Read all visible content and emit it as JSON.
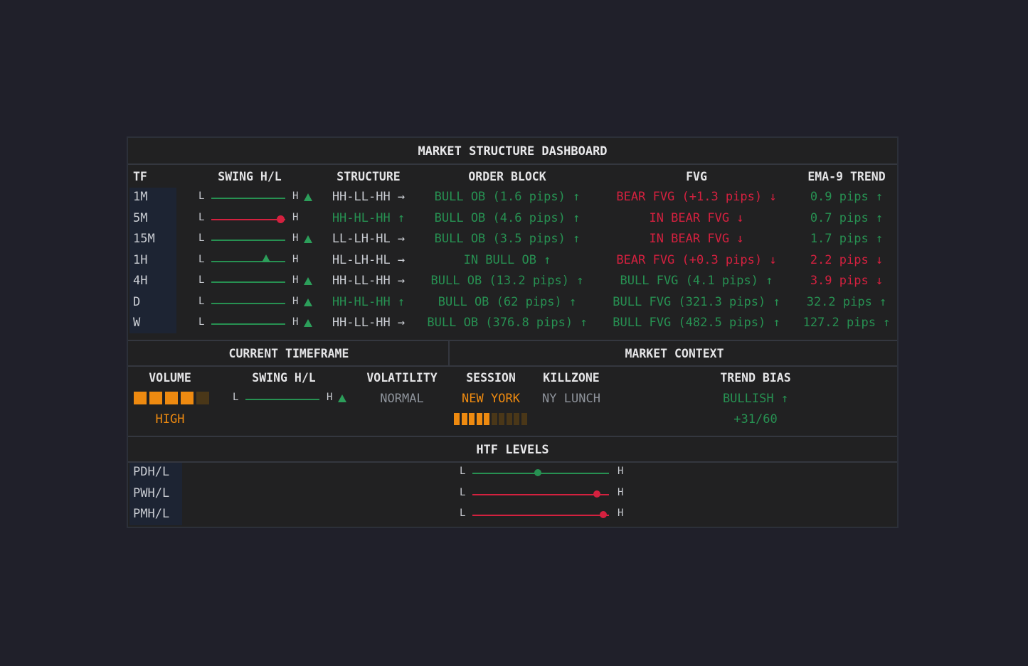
{
  "title": "MARKET STRUCTURE DASHBOARD",
  "columns": [
    "TF",
    "SWING H/L",
    "STRUCTURE",
    "ORDER BLOCK",
    "FVG",
    "EMA-9 TREND"
  ],
  "swing_labels": {
    "low": "L",
    "high": "H"
  },
  "rows": [
    {
      "tf": "1M",
      "swing_pos": 1.0,
      "swing_color": "#279152",
      "swing_marker": "triangle-out",
      "structure": "HH-LL-HH →",
      "structure_color": "light",
      "ob": "BULL OB (1.6 pips) ↑",
      "ob_color": "green",
      "fvg": "BEAR FVG (+1.3 pips) ↓",
      "fvg_color": "red",
      "ema": "0.9 pips ↑",
      "ema_color": "green"
    },
    {
      "tf": "5M",
      "swing_pos": 0.93,
      "swing_color": "#d4213f",
      "swing_marker": "dot",
      "structure": "HH-HL-HH ↑",
      "structure_color": "green",
      "ob": "BULL OB (4.6 pips) ↑",
      "ob_color": "green",
      "fvg": "IN BEAR FVG ↓",
      "fvg_color": "red",
      "ema": "0.7 pips ↑",
      "ema_color": "green"
    },
    {
      "tf": "15M",
      "swing_pos": 1.0,
      "swing_color": "#279152",
      "swing_marker": "triangle-out",
      "structure": "LL-LH-HL →",
      "structure_color": "light",
      "ob": "BULL OB (3.5 pips) ↑",
      "ob_color": "green",
      "fvg": "IN BEAR FVG ↓",
      "fvg_color": "red",
      "ema": "1.7 pips ↑",
      "ema_color": "green"
    },
    {
      "tf": "1H",
      "swing_pos": 0.74,
      "swing_color": "#279152",
      "swing_marker": "triangle-in",
      "structure": "HL-LH-HL →",
      "structure_color": "light",
      "ob": "IN BULL OB ↑",
      "ob_color": "green",
      "fvg": "BEAR FVG (+0.3 pips) ↓",
      "fvg_color": "red",
      "ema": "2.2 pips ↓",
      "ema_color": "red"
    },
    {
      "tf": "4H",
      "swing_pos": 1.0,
      "swing_color": "#279152",
      "swing_marker": "triangle-out",
      "structure": "HH-LL-HH →",
      "structure_color": "light",
      "ob": "BULL OB (13.2 pips) ↑",
      "ob_color": "green",
      "fvg": "BULL FVG (4.1 pips) ↑",
      "fvg_color": "green",
      "ema": "3.9 pips ↓",
      "ema_color": "red"
    },
    {
      "tf": "D",
      "swing_pos": 1.0,
      "swing_color": "#279152",
      "swing_marker": "triangle-out",
      "structure": "HH-HL-HH ↑",
      "structure_color": "green",
      "ob": "BULL OB (62 pips) ↑",
      "ob_color": "green",
      "fvg": "BULL FVG (321.3 pips) ↑",
      "fvg_color": "green",
      "ema": "32.2 pips ↑",
      "ema_color": "green"
    },
    {
      "tf": "W",
      "swing_pos": 1.0,
      "swing_color": "#279152",
      "swing_marker": "triangle-out",
      "structure": "HH-LL-HH →",
      "structure_color": "light",
      "ob": "BULL OB (376.8 pips) ↑",
      "ob_color": "green",
      "fvg": "BULL FVG (482.5 pips) ↑",
      "fvg_color": "green",
      "ema": "127.2 pips ↑",
      "ema_color": "green"
    }
  ],
  "current_timeframe": {
    "title": "CURRENT TIMEFRAME",
    "volume_label": "VOLUME",
    "volume_level": 4,
    "volume_max": 5,
    "volume_text": "HIGH",
    "swing_label": "SWING H/L",
    "swing_pos": 1.0,
    "volatility_label": "VOLATILITY",
    "volatility_value": "NORMAL"
  },
  "market_context": {
    "title": "MARKET CONTEXT",
    "session_label": "SESSION",
    "session_value": "NEW YORK",
    "session_progress": 5,
    "session_segments": 10,
    "killzone_label": "KILLZONE",
    "killzone_value": "NY LUNCH",
    "trend_bias_label": "TREND BIAS",
    "trend_bias_value": "BULLISH ↑",
    "trend_bias_score": "+31/60"
  },
  "htf": {
    "title": "HTF LEVELS",
    "levels": [
      {
        "name": "PDH/L",
        "pos": 0.48,
        "color": "#279152"
      },
      {
        "name": "PWH/L",
        "pos": 0.91,
        "color": "#d4213f"
      },
      {
        "name": "PMH/L",
        "pos": 0.96,
        "color": "#d4213f"
      }
    ]
  },
  "colors": {
    "bg": "#20202a",
    "panel": "#212122",
    "tf_col": "#1d2433",
    "green": "#279152",
    "red": "#d4213f",
    "orange": "#ee8a10",
    "orange_dim": "#4a3718"
  }
}
